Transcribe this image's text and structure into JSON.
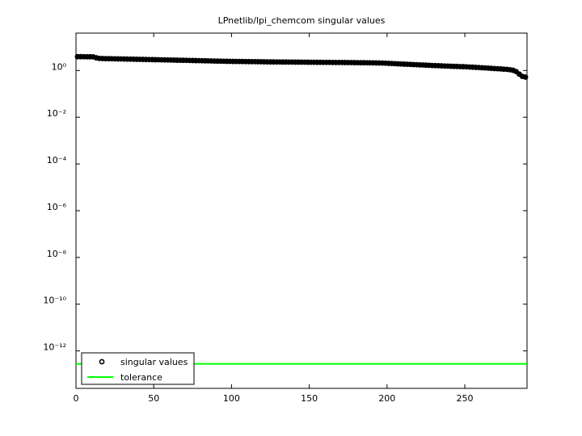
{
  "chart_data": {
    "type": "scatter",
    "title": "LPnetlib/lpi_chemcom singular values",
    "xlim": [
      0,
      290
    ],
    "xticks": [
      0,
      50,
      100,
      150,
      200,
      250
    ],
    "ylim": [
      2.5e-14,
      39.8
    ],
    "log_y": true,
    "yticks": [
      {
        "value": 1e-12,
        "label": "10⁻¹²"
      },
      {
        "value": 1e-10,
        "label": "10⁻¹⁰"
      },
      {
        "value": 1e-08,
        "label": "10⁻⁸"
      },
      {
        "value": 1e-06,
        "label": "10⁻⁶"
      },
      {
        "value": 0.0001,
        "label": "10⁻⁴"
      },
      {
        "value": 0.01,
        "label": "10⁻²"
      },
      {
        "value": 1,
        "label": "10⁰"
      }
    ],
    "grid": false,
    "legend": "lower left",
    "series": [
      {
        "name": "singular values",
        "color": "#000000",
        "marker": "circle",
        "x": [
          1,
          3,
          5,
          7,
          9,
          11,
          13,
          15,
          17,
          19,
          21,
          23,
          25,
          27,
          29,
          31,
          33,
          35,
          37,
          39,
          41,
          43,
          45,
          47,
          49,
          51,
          53,
          55,
          57,
          59,
          61,
          63,
          65,
          67,
          69,
          71,
          73,
          75,
          77,
          79,
          81,
          83,
          85,
          87,
          89,
          91,
          93,
          95,
          97,
          99,
          101,
          103,
          105,
          107,
          109,
          111,
          113,
          115,
          117,
          119,
          121,
          123,
          125,
          127,
          129,
          131,
          133,
          135,
          137,
          139,
          141,
          143,
          145,
          147,
          149,
          151,
          153,
          155,
          157,
          159,
          161,
          163,
          165,
          167,
          169,
          171,
          173,
          175,
          177,
          179,
          181,
          183,
          185,
          187,
          189,
          191,
          193,
          195,
          197,
          199,
          201,
          203,
          205,
          207,
          209,
          211,
          213,
          215,
          217,
          219,
          221,
          223,
          225,
          227,
          229,
          231,
          233,
          235,
          237,
          239,
          241,
          243,
          245,
          247,
          249,
          251,
          253,
          255,
          257,
          259,
          261,
          263,
          265,
          267,
          269,
          271,
          273,
          275,
          277,
          279,
          281,
          283,
          285,
          287,
          289
        ],
        "values": [
          3.9,
          3.9,
          3.88,
          3.87,
          3.86,
          3.85,
          3.5,
          3.3,
          3.25,
          3.22,
          3.2,
          3.18,
          3.16,
          3.14,
          3.12,
          3.1,
          3.08,
          3.06,
          3.04,
          3.02,
          3.0,
          2.98,
          2.96,
          2.94,
          2.92,
          2.9,
          2.88,
          2.86,
          2.84,
          2.82,
          2.8,
          2.78,
          2.76,
          2.75,
          2.73,
          2.71,
          2.69,
          2.67,
          2.65,
          2.63,
          2.61,
          2.6,
          2.58,
          2.56,
          2.54,
          2.52,
          2.51,
          2.49,
          2.47,
          2.46,
          2.45,
          2.44,
          2.43,
          2.42,
          2.41,
          2.4,
          2.39,
          2.38,
          2.37,
          2.36,
          2.35,
          2.34,
          2.33,
          2.33,
          2.32,
          2.31,
          2.3,
          2.3,
          2.29,
          2.29,
          2.28,
          2.28,
          2.27,
          2.27,
          2.26,
          2.25,
          2.25,
          2.24,
          2.24,
          2.23,
          2.23,
          2.22,
          2.21,
          2.21,
          2.2,
          2.2,
          2.19,
          2.18,
          2.18,
          2.17,
          2.16,
          2.15,
          2.15,
          2.14,
          2.13,
          2.12,
          2.11,
          2.1,
          2.08,
          2.05,
          2.02,
          1.99,
          1.96,
          1.93,
          1.9,
          1.87,
          1.84,
          1.82,
          1.79,
          1.77,
          1.74,
          1.72,
          1.69,
          1.67,
          1.64,
          1.62,
          1.6,
          1.58,
          1.56,
          1.54,
          1.52,
          1.5,
          1.49,
          1.47,
          1.46,
          1.44,
          1.41,
          1.39,
          1.36,
          1.34,
          1.31,
          1.29,
          1.26,
          1.24,
          1.21,
          1.19,
          1.17,
          1.14,
          1.12,
          1.08,
          1.02,
          0.9,
          0.7,
          0.56,
          0.52
        ]
      },
      {
        "name": "tolerance",
        "color": "#00ff00",
        "marker": "line",
        "x": [
          0,
          290
        ],
        "values": [
          2.8e-13,
          2.8e-13
        ]
      }
    ]
  }
}
